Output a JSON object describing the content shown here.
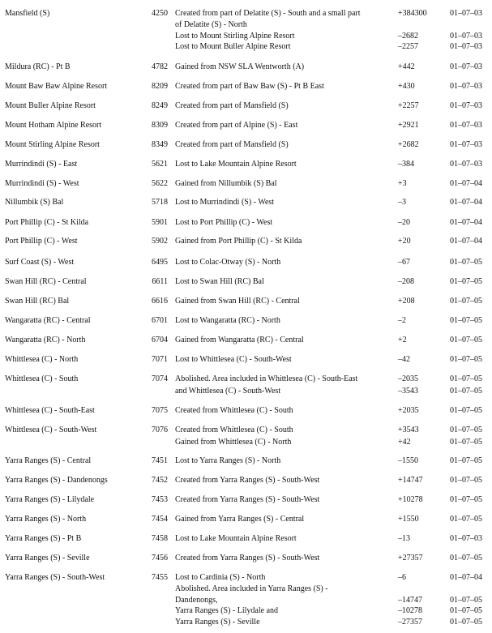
{
  "rows": [
    {
      "name": "Mansfield (S)",
      "code": "4250",
      "lines": [
        {
          "text": "Created from part of Delatite (S) - South and a small part",
          "change": "+384300",
          "date": "01–07–03"
        },
        {
          "text": "of Delatite (S) - North",
          "change": "",
          "date": ""
        },
        {
          "text": "Lost to Mount Stirling Alpine Resort",
          "change": "–2682",
          "date": "01–07–03"
        },
        {
          "text": "Lost to Mount Buller Alpine Resort",
          "change": "–2257",
          "date": "01–07–03"
        }
      ]
    },
    {
      "name": "Mildura (RC) - Pt B",
      "code": "4782",
      "lines": [
        {
          "text": "Gained from NSW SLA Wentworth (A)",
          "change": "+442",
          "date": "01–07–03"
        }
      ]
    },
    {
      "name": "Mount Baw Baw Alpine Resort",
      "code": "8209",
      "lines": [
        {
          "text": "Created from part of Baw Baw (S) - Pt B East",
          "change": "+430",
          "date": "01–07–03"
        }
      ]
    },
    {
      "name": "Mount Buller Alpine Resort",
      "code": "8249",
      "lines": [
        {
          "text": "Created  from part of Mansfield (S)",
          "change": "+2257",
          "date": "01–07–03"
        }
      ]
    },
    {
      "name": "Mount Hotham Alpine Resort",
      "code": "8309",
      "lines": [
        {
          "text": "Created from part of Alpine (S) - East",
          "change": "+2921",
          "date": "01–07–03"
        }
      ]
    },
    {
      "name": "Mount Stirling Alpine Resort",
      "code": "8349",
      "lines": [
        {
          "text": "Created from part of Mansfield (S)",
          "change": "+2682",
          "date": "01–07–03"
        }
      ]
    },
    {
      "name": "Murrindindi (S) - East",
      "code": "5621",
      "lines": [
        {
          "text": "Lost to Lake Mountain Alpine Resort",
          "change": "–384",
          "date": "01–07–03"
        }
      ]
    },
    {
      "name": "Murrindindi (S) - West",
      "code": "5622",
      "lines": [
        {
          "text": "Gained from Nillumbik (S) Bal",
          "change": "+3",
          "date": "01–07–04"
        }
      ]
    },
    {
      "name": "Nillumbik (S) Bal",
      "code": "5718",
      "lines": [
        {
          "text": "Lost to Murrindindi (S) - West",
          "change": "–3",
          "date": "01–07–04"
        }
      ]
    },
    {
      "name": "Port Phillip (C) - St Kilda",
      "code": "5901",
      "lines": [
        {
          "text": "Lost to Port Phillip (C) - West",
          "change": "–20",
          "date": "01–07–04"
        }
      ]
    },
    {
      "name": "Port Phillip (C) - West",
      "code": "5902",
      "lines": [
        {
          "text": "Gained from Port Phillip (C) - St Kilda",
          "change": "+20",
          "date": "01–07–04"
        }
      ]
    },
    {
      "name": "Surf Coast (S) - West",
      "code": "6495",
      "lines": [
        {
          "text": "Lost to Colac-Otway (S) - North",
          "change": "–67",
          "date": "01–07–05"
        }
      ]
    },
    {
      "name": "Swan Hill (RC) - Central",
      "code": "6611",
      "lines": [
        {
          "text": "Lost to Swan Hill (RC) Bal",
          "change": "–208",
          "date": "01–07–05"
        }
      ]
    },
    {
      "name": "Swan Hill (RC) Bal",
      "code": "6616",
      "lines": [
        {
          "text": "Gained from Swan Hill (RC) - Central",
          "change": "+208",
          "date": "01–07–05"
        }
      ]
    },
    {
      "name": "Wangaratta (RC) - Central",
      "code": "6701",
      "lines": [
        {
          "text": "Lost to Wangaratta (RC) - North",
          "change": "–2",
          "date": "01–07–05"
        }
      ]
    },
    {
      "name": "Wangaratta (RC) - North",
      "code": "6704",
      "lines": [
        {
          "text": "Gained from Wangaratta (RC) - Central",
          "change": "+2",
          "date": "01–07–05"
        }
      ]
    },
    {
      "name": "Whittlesea (C) - North",
      "code": "7071",
      "lines": [
        {
          "text": "Lost to Whittlesea (C) - South-West",
          "change": "–42",
          "date": "01–07–05"
        }
      ]
    },
    {
      "name": "Whittlesea (C) - South",
      "code": "7074",
      "lines": [
        {
          "text": "Abolished. Area included in Whittlesea (C) - South-East",
          "change": "–2035",
          "date": "01–07–05"
        },
        {
          "text": "and Whittlesea (C) - South-West",
          "change": "–3543",
          "date": "01–07–05"
        }
      ]
    },
    {
      "name": "Whittlesea (C) - South-East",
      "code": "7075",
      "lines": [
        {
          "text": "Created from Whittlesea (C) - South",
          "change": "+2035",
          "date": "01–07–05"
        }
      ]
    },
    {
      "name": "Whittlesea (C) - South-West",
      "code": "7076",
      "lines": [
        {
          "text": "Created from Whittlesea (C) - South",
          "change": "+3543",
          "date": "01–07–05"
        },
        {
          "text": "Gained from Whittlesea (C) - North",
          "change": "+42",
          "date": "01–07–05"
        }
      ]
    },
    {
      "name": "Yarra Ranges (S) - Central",
      "code": "7451",
      "lines": [
        {
          "text": "Lost to Yarra Ranges (S) - North",
          "change": "–1550",
          "date": "01–07–05"
        }
      ]
    },
    {
      "name": "Yarra Ranges (S) - Dandenongs",
      "code": "7452",
      "lines": [
        {
          "text": "Created from Yarra Ranges (S) - South-West",
          "change": "+14747",
          "date": "01–07–05"
        }
      ]
    },
    {
      "name": "Yarra Ranges (S) - Lilydale",
      "code": "7453",
      "lines": [
        {
          "text": "Created from Yarra Ranges (S) - South-West",
          "change": "+10278",
          "date": "01–07–05"
        }
      ]
    },
    {
      "name": "Yarra Ranges (S) - North",
      "code": "7454",
      "lines": [
        {
          "text": "Gained from Yarra Ranges (S) - Central",
          "change": "+1550",
          "date": "01–07–05"
        }
      ]
    },
    {
      "name": "Yarra Ranges (S) - Pt B",
      "code": "7458",
      "lines": [
        {
          "text": "Lost to Lake Mountain Alpine Resort",
          "change": "–13",
          "date": "01–07–03"
        }
      ]
    },
    {
      "name": "Yarra Ranges (S) - Seville",
      "code": "7456",
      "lines": [
        {
          "text": "Created from Yarra Ranges (S) - South-West",
          "change": "+27357",
          "date": "01–07–05"
        }
      ]
    },
    {
      "name": "Yarra Ranges (S) - South-West",
      "code": "7455",
      "lines": [
        {
          "text": "Lost to Cardinia (S) - North",
          "change": "–6",
          "date": "01–07–04"
        },
        {
          "text": "Abolished. Area included in Yarra Ranges (S) -",
          "change": "",
          "date": ""
        },
        {
          "text": "Dandenongs,",
          "change": "–14747",
          "date": "01–07–05"
        },
        {
          "text": "Yarra Ranges (S) - Lilydale and",
          "change": "–10278",
          "date": "01–07–05"
        },
        {
          "text": "Yarra Ranges (S) - Seville",
          "change": "–27357",
          "date": "01–07–05"
        }
      ]
    }
  ]
}
